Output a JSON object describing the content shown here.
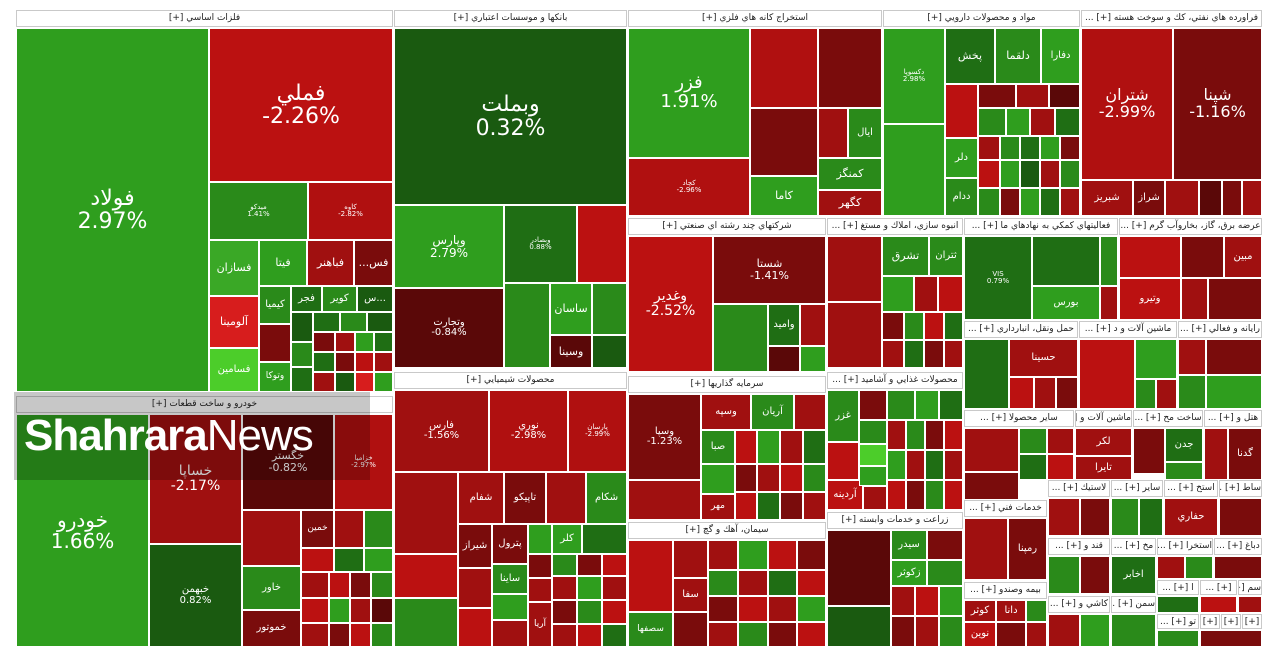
{
  "sectors": [
    {
      "name": "فلزات اساسي [+]"
    },
    {
      "name": "بانكها و موسسات اعتباري [+]"
    },
    {
      "name": "استخراج كانه هاي فلزي [+]"
    },
    {
      "name": "مواد و محصولات دارويي [+]"
    },
    {
      "name": "فراورده هاي نفتي، كك و سوخت هسته [+] ..."
    },
    {
      "name": "شركتهاي چند رشته اي صنعتي [+]"
    },
    {
      "name": "انبوه سازي، املاك و مستغ [+] ..."
    },
    {
      "name": "فعاليتهاي كمكي به نهادهاي ما [+] ..."
    },
    {
      "name": "عرضه برق، گاز، بخاروآب گرم [+] ..."
    },
    {
      "name": "حمل ونقل، انبارداري [+] ..."
    },
    {
      "name": "ماشين آلات و د [+] ..."
    },
    {
      "name": "رايانه و فعالي [+] ..."
    },
    {
      "name": "محصولات غذايي و آشاميد [+] ..."
    },
    {
      "name": "ساير محصولا [+] ..."
    },
    {
      "name": "ماشين آلات و [+] ..."
    },
    {
      "name": "ساخت مح [+] ..."
    },
    {
      "name": "هتل و [+] ..."
    },
    {
      "name": "خودرو و ساخت قطعات [+]"
    },
    {
      "name": "محصولات شيميايي [+]"
    },
    {
      "name": "سرمايه گذاريها [+]"
    },
    {
      "name": "سيمان، آهك و گچ [+]"
    },
    {
      "name": "زراعت و خدمات وابسته [+]"
    },
    {
      "name": "خدمات فني [+] ..."
    },
    {
      "name": "بيمه وصندو [+] ..."
    },
    {
      "name": "لاستيك [+] ..."
    },
    {
      "name": "ساير [+] ..."
    },
    {
      "name": "استخ [+] ..."
    },
    {
      "name": "ساط [+] ..."
    },
    {
      "name": "قند و [+] ..."
    },
    {
      "name": "مخ [+] ..."
    },
    {
      "name": "استخرا [+] ..."
    },
    {
      "name": "دباغ [+] ..."
    },
    {
      "name": "كاشي و [+] ..."
    },
    {
      "name": "سمن [+] ..."
    },
    {
      "name": "ا [+] ..."
    },
    {
      "name": "[+] ..."
    },
    {
      "name": "سم [+] ..."
    },
    {
      "name": "[+]"
    },
    {
      "name": "[+]"
    },
    {
      "name": "تو [+] ..."
    },
    {
      "name": "[+]"
    }
  ],
  "stocks": [
    {
      "n": "فولاد",
      "p": "2.97%",
      "c": "#2f9e1e"
    },
    {
      "n": "فملي",
      "p": "-2.26%",
      "c": "#bb1111"
    },
    {
      "n": "ميدكو",
      "p": "1.41%",
      "c": "#2a8a1a"
    },
    {
      "n": "كاوه",
      "p": "-2.82%",
      "c": "#b01010"
    },
    {
      "n": "فسازان",
      "p": "",
      "c": "#3aa826"
    },
    {
      "n": "فيتا",
      "p": "",
      "c": "#2f9e1e"
    },
    {
      "n": "فباهنر",
      "p": "",
      "c": "#a01010"
    },
    {
      "n": "فس...",
      "p": "",
      "c": "#7a0c0c"
    },
    {
      "n": "آلومينا",
      "p": "",
      "c": "#d71d1d"
    },
    {
      "n": "كيميا",
      "p": "",
      "c": "#2a8a1a"
    },
    {
      "n": "فجر",
      "p": "",
      "c": "#1f6e14"
    },
    {
      "n": "كوير",
      "p": "",
      "c": "#2a8a1a"
    },
    {
      "n": "...س",
      "p": "",
      "c": "#1a5a10"
    },
    {
      "n": "فسامين",
      "p": "",
      "c": "#4ccd2a"
    },
    {
      "n": "وتوكا",
      "p": "",
      "c": "#2f9e1e"
    },
    {
      "n": "وبملت",
      "p": "0.32%",
      "c": "#1a5a10"
    },
    {
      "n": "وپارس",
      "p": "2.79%",
      "c": "#2f9e1e"
    },
    {
      "n": "وبصادر",
      "p": "0.88%",
      "c": "#1f6e14"
    },
    {
      "n": "وتجارت",
      "p": "-0.84%",
      "c": "#5a0808"
    },
    {
      "n": "ساسان",
      "p": "",
      "c": "#2f9e1e"
    },
    {
      "n": "وسينا",
      "p": "",
      "c": "#5a0808"
    },
    {
      "n": "فزر",
      "p": "1.91%",
      "c": "#2f9e1e"
    },
    {
      "n": "كچاد",
      "p": "-2.96%",
      "c": "#b01010"
    },
    {
      "n": "كاما",
      "p": "",
      "c": "#2f9e1e"
    },
    {
      "n": "كمنگز",
      "p": "",
      "c": "#2a8a1a"
    },
    {
      "n": "كگهر",
      "p": "",
      "c": "#a01010"
    },
    {
      "n": "ايال",
      "p": "",
      "c": "#2a8a1a"
    },
    {
      "n": "دكسوپا",
      "p": "2.98%",
      "c": "#2f9e1e"
    },
    {
      "n": "پخش",
      "p": "",
      "c": "#1f6e14"
    },
    {
      "n": "دلقما",
      "p": "",
      "c": "#2a8a1a"
    },
    {
      "n": "دفارا",
      "p": "",
      "c": "#2f9e1e"
    },
    {
      "n": "دلر",
      "p": "",
      "c": "#2f9e1e"
    },
    {
      "n": "ددام",
      "p": "",
      "c": "#2a8a1a"
    },
    {
      "n": "شتران",
      "p": "-2.99%",
      "c": "#b01010"
    },
    {
      "n": "شپنا",
      "p": "-1.16%",
      "c": "#7a0c0c"
    },
    {
      "n": "شراز",
      "p": "",
      "c": "#7a0c0c"
    },
    {
      "n": "شبريز",
      "p": "",
      "c": "#a01010"
    },
    {
      "n": "وغدير",
      "p": "-2.52%",
      "c": "#bb1111"
    },
    {
      "n": "شستا",
      "p": "-1.41%",
      "c": "#7a0c0c"
    },
    {
      "n": "واميد",
      "p": "",
      "c": "#1f6e14"
    },
    {
      "n": "تشرق",
      "p": "",
      "c": "#2a8a1a"
    },
    {
      "n": "ثتران",
      "p": "",
      "c": "#2a8a1a"
    },
    {
      "n": "VIS",
      "p": "0.79%",
      "c": "#1f6e14"
    },
    {
      "n": "بورس",
      "p": "",
      "c": "#2f9e1e"
    },
    {
      "n": "مبين",
      "p": "",
      "c": "#a01010"
    },
    {
      "n": "وتيرو",
      "p": "",
      "c": "#bb1111"
    },
    {
      "n": "حسينا",
      "p": "",
      "c": "#a01010"
    },
    {
      "n": "خودرو",
      "p": "1.66%",
      "c": "#2f9e1e"
    },
    {
      "n": "خساپا",
      "p": "-2.17%",
      "c": "#a01010"
    },
    {
      "n": "خگستر",
      "p": "-0.82%",
      "c": "#5a0808"
    },
    {
      "n": "خزاميا",
      "p": "-2.97%",
      "c": "#b01010"
    },
    {
      "n": "خبهمن",
      "p": "0.82%",
      "c": "#1a5a10"
    },
    {
      "n": "خاور",
      "p": "",
      "c": "#2a8a1a"
    },
    {
      "n": "خموتور",
      "p": "",
      "c": "#7a0c0c"
    },
    {
      "n": "خمين",
      "p": "",
      "c": "#7a0c0c"
    },
    {
      "n": "فارس",
      "p": "-1.56%",
      "c": "#a01010"
    },
    {
      "n": "نوري",
      "p": "-2.98%",
      "c": "#b01010"
    },
    {
      "n": "پارسان",
      "p": "-2.99%",
      "c": "#b01010"
    },
    {
      "n": "شفام",
      "p": "",
      "c": "#a01010"
    },
    {
      "n": "تاپيكو",
      "p": "",
      "c": "#7a0c0c"
    },
    {
      "n": "شكام",
      "p": "",
      "c": "#2a8a1a"
    },
    {
      "n": "شيراز",
      "p": "",
      "c": "#7a0c0c"
    },
    {
      "n": "پترول",
      "p": "",
      "c": "#7a0c0c"
    },
    {
      "n": "كلر",
      "p": "",
      "c": "#2f9e1e"
    },
    {
      "n": "ساينا",
      "p": "",
      "c": "#2a8a1a"
    },
    {
      "n": "آريا",
      "p": "",
      "c": "#a01010"
    },
    {
      "n": "وسپا",
      "p": "-1.23%",
      "c": "#7a0c0c"
    },
    {
      "n": "وسپه",
      "p": "",
      "c": "#a01010"
    },
    {
      "n": "آريان",
      "p": "",
      "c": "#2a8a1a"
    },
    {
      "n": "صبا",
      "p": "",
      "c": "#2a8a1a"
    },
    {
      "n": "مهر",
      "p": "",
      "c": "#a01010"
    },
    {
      "n": "سفا",
      "p": "",
      "c": "#a01010"
    },
    {
      "n": "سصفها",
      "p": "",
      "c": "#2a8a1a"
    },
    {
      "n": "غزر",
      "p": "",
      "c": "#2a8a1a"
    },
    {
      "n": "آردينه",
      "p": "",
      "c": "#bb1111"
    },
    {
      "n": "سيدر",
      "p": "",
      "c": "#2a8a1a"
    },
    {
      "n": "زكوثر",
      "p": "",
      "c": "#2f9e1e"
    },
    {
      "n": "رمپنا",
      "p": "",
      "c": "#7a0c0c"
    },
    {
      "n": "لكر",
      "p": "",
      "c": "#a01010"
    },
    {
      "n": "تايرا",
      "p": "",
      "c": "#a01010"
    },
    {
      "n": "جدن",
      "p": "",
      "c": "#1f6e14"
    },
    {
      "n": "گدنا",
      "p": "",
      "c": "#7a0c0c"
    },
    {
      "n": "حفاري",
      "p": "",
      "c": "#a01010"
    },
    {
      "n": "اخابر",
      "p": "",
      "c": "#1f6e14"
    },
    {
      "n": "كوثر",
      "p": "",
      "c": "#a01010"
    },
    {
      "n": "دانا",
      "p": "",
      "c": "#a01010"
    },
    {
      "n": "نوين",
      "p": "",
      "c": "#bb1111"
    }
  ],
  "watermark": {
    "bold": "Shahrara",
    "light": "News"
  }
}
